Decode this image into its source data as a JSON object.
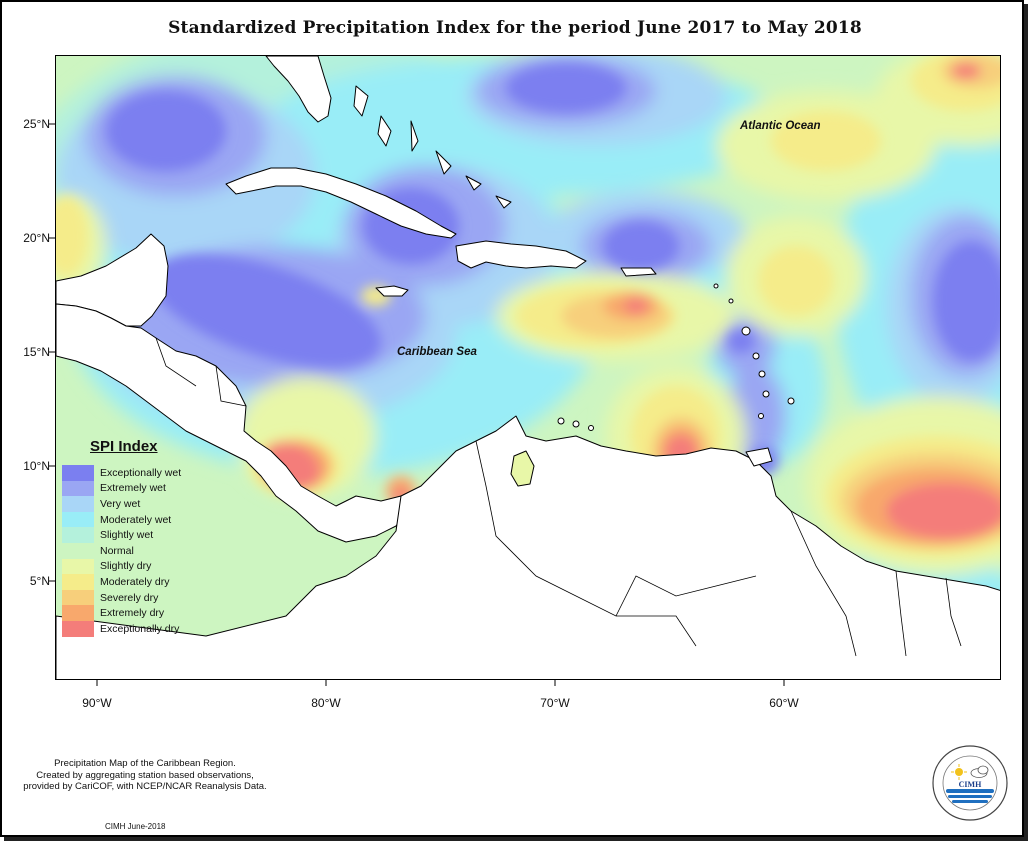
{
  "title": "Standardized Precipitation Index for the period June 2017 to May 2018",
  "axes": {
    "lat_labels": [
      "25°N",
      "20°N",
      "15°N",
      "10°N",
      "5°N"
    ],
    "lon_labels": [
      "90°W",
      "80°W",
      "70°W",
      "60°W"
    ]
  },
  "ocean_labels": {
    "atlantic": "Atlantic Ocean",
    "caribbean": "Caribbean Sea"
  },
  "legend": {
    "title": "SPI Index",
    "items": [
      {
        "label": "Exceptionally wet",
        "color": "#7b7ff0"
      },
      {
        "label": "Extremely wet",
        "color": "#9aa6f3"
      },
      {
        "label": "Very wet",
        "color": "#a9d6f7"
      },
      {
        "label": "Moderately wet",
        "color": "#99edf7"
      },
      {
        "label": "Slightly wet",
        "color": "#b4f1dc"
      },
      {
        "label": "Normal",
        "color": "#cdf5c1"
      },
      {
        "label": "Slightly dry",
        "color": "#e8f7a8"
      },
      {
        "label": "Moderately dry",
        "color": "#f5ec8a"
      },
      {
        "label": "Severely dry",
        "color": "#f7cf7b"
      },
      {
        "label": "Extremely dry",
        "color": "#f8a86c"
      },
      {
        "label": "Exceptionally dry",
        "color": "#f47d7a"
      }
    ]
  },
  "footnote": {
    "line1": "Precipitation Map of the Caribbean Region.",
    "line2": "Created by aggregating station based observations,",
    "line3": "provided by CariCOF, with NCEP/NCAR Reanalysis Data."
  },
  "date_note": "CIMH June-2018",
  "logo": {
    "text": "CIMH",
    "ring_text": "Caribbean Institute for Meteorology and Hydrology",
    "icons": [
      "sun-icon",
      "cloud-icon",
      "water-waves-icon"
    ]
  }
}
